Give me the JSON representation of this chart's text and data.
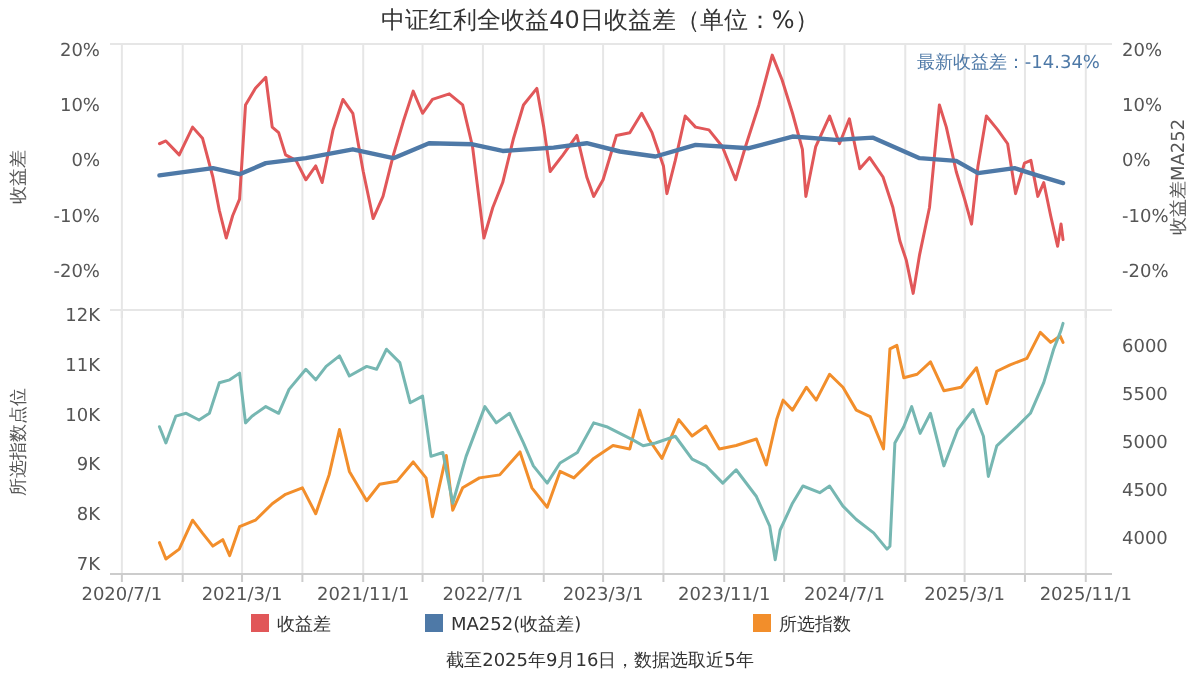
{
  "chart_data": [
    {
      "type": "line",
      "title": "中证红利全收益40日收益差（单位：%）",
      "ylabel": "收益差",
      "y2label": "收益差MA252",
      "annotations": [
        "最新收益差：-14.34%"
      ],
      "xlim": [
        "2020-06-07",
        "2025-12-24"
      ],
      "xticks": [
        {
          "value": "2020-07-01",
          "label": null
        },
        {
          "value": "2020-11-01",
          "label": null
        },
        {
          "value": "2021-03-01",
          "label": null
        },
        {
          "value": "2021-07-01",
          "label": null
        },
        {
          "value": "2021-11-01",
          "label": null
        },
        {
          "value": "2022-03-01",
          "label": null
        },
        {
          "value": "2022-07-01",
          "label": null
        },
        {
          "value": "2022-11-01",
          "label": null
        },
        {
          "value": "2023-03-01",
          "label": null
        },
        {
          "value": "2023-07-01",
          "label": null
        },
        {
          "value": "2023-11-01",
          "label": null
        },
        {
          "value": "2024-03-01",
          "label": null
        },
        {
          "value": "2024-07-01",
          "label": null
        },
        {
          "value": "2024-11-01",
          "label": null
        },
        {
          "value": "2025-03-01",
          "label": null
        },
        {
          "value": "2025-07-01",
          "label": null
        },
        {
          "value": "2025-11-01",
          "label": null
        }
      ],
      "ylim": [
        -27,
        21
      ],
      "yticks": [
        {
          "value": -20,
          "label": "-20%"
        },
        {
          "value": -10,
          "label": "-10%"
        },
        {
          "value": 0,
          "label": "0%"
        },
        {
          "value": 10,
          "label": "10%"
        },
        {
          "value": 20,
          "label": "20%"
        }
      ],
      "y2lim": [
        -27,
        21
      ],
      "y2ticks": [
        {
          "value": -20,
          "label": "-20%"
        },
        {
          "value": -10,
          "label": "-10%"
        },
        {
          "value": 0,
          "label": "0%"
        },
        {
          "value": 10,
          "label": "10%"
        },
        {
          "value": 20,
          "label": "20%"
        }
      ],
      "grid": "x",
      "legend": "bottom",
      "tick_labels": "y",
      "series": [
        {
          "name": "收益差",
          "color": "#e15759",
          "x": [
            "2020-09-15",
            "2020-09-28",
            "2020-10-25",
            "2020-11-21",
            "2020-12-11",
            "2021-01-01",
            "2021-01-14",
            "2021-01-28",
            "2021-02-10",
            "2021-02-24",
            "2021-03-08",
            "2021-03-28",
            "2021-04-18",
            "2021-05-01",
            "2021-05-14",
            "2021-05-28",
            "2021-06-18",
            "2021-07-08",
            "2021-07-28",
            "2021-08-10",
            "2021-09-01",
            "2021-09-21",
            "2021-10-11",
            "2021-11-01",
            "2021-11-21",
            "2021-12-11",
            "2022-01-01",
            "2022-01-21",
            "2022-02-10",
            "2022-03-01",
            "2022-03-21",
            "2022-04-24",
            "2022-05-21",
            "2022-06-10",
            "2022-06-24",
            "2022-07-03",
            "2022-07-21",
            "2022-08-10",
            "2022-09-01",
            "2022-09-21",
            "2022-10-18",
            "2022-11-01",
            "2022-11-14",
            "2022-12-10",
            "2023-01-07",
            "2023-01-27",
            "2023-02-10",
            "2023-03-01",
            "2023-03-28",
            "2023-04-24",
            "2023-05-18",
            "2023-06-08",
            "2023-07-01",
            "2023-07-08",
            "2023-07-25",
            "2023-08-14",
            "2023-09-04",
            "2023-10-01",
            "2023-10-28",
            "2023-11-24",
            "2023-12-14",
            "2024-01-10",
            "2024-02-06",
            "2024-02-26",
            "2024-03-18",
            "2024-04-07",
            "2024-04-14",
            "2024-05-04",
            "2024-06-01",
            "2024-06-21",
            "2024-07-11",
            "2024-08-01",
            "2024-08-21",
            "2024-09-17",
            "2024-10-07",
            "2024-10-21",
            "2024-11-03",
            "2024-11-17",
            "2024-11-30",
            "2024-12-20",
            "2025-01-09",
            "2025-01-23",
            "2025-02-12",
            "2025-03-01",
            "2025-03-15",
            "2025-03-28",
            "2025-04-14",
            "2025-05-07",
            "2025-05-27",
            "2025-06-12",
            "2025-06-30",
            "2025-07-13",
            "2025-07-27",
            "2025-08-08",
            "2025-08-22",
            "2025-09-05",
            "2025-09-12",
            "2025-09-16"
          ],
          "values": [
            3,
            3.5,
            1,
            6,
            4,
            -3,
            -9,
            -14,
            -10,
            -7,
            10,
            13,
            15,
            6,
            5,
            1,
            0,
            -3.5,
            -1,
            -4,
            5.5,
            11,
            8.5,
            -2,
            -10.5,
            -6.5,
            1,
            7,
            12.5,
            8.5,
            11,
            12,
            10,
            2.5,
            -7.5,
            -14,
            -8.5,
            -4,
            4,
            10,
            13,
            6,
            -2,
            1,
            4.5,
            -3,
            -6.5,
            -3.5,
            4.5,
            5,
            8.5,
            5,
            -1,
            -6,
            0,
            8,
            6,
            5.5,
            2.5,
            -3.5,
            2.5,
            10,
            19,
            14.5,
            8.5,
            2,
            -6.5,
            2.5,
            8,
            3,
            7.5,
            -1.5,
            0.5,
            -3,
            -8.5,
            -14.5,
            -18,
            -24,
            -17,
            -8.5,
            10,
            6,
            -2,
            -7,
            -11.5,
            -1,
            8,
            5.5,
            3,
            -6,
            -0.5,
            0,
            -6.5,
            -4,
            -10,
            -15.5,
            -11.5,
            -14.3
          ]
        },
        {
          "name": "MA252(收益差)",
          "color": "#4e79a7",
          "axis": "y2",
          "x": [
            "2020-09-15",
            "2021-01-01",
            "2021-02-24",
            "2021-04-18",
            "2021-07-08",
            "2021-10-11",
            "2022-01-01",
            "2022-03-14",
            "2022-06-10",
            "2022-08-10",
            "2022-11-21",
            "2023-01-27",
            "2023-04-04",
            "2023-06-15",
            "2023-09-04",
            "2023-12-21",
            "2024-03-18",
            "2024-06-14",
            "2024-08-28",
            "2024-11-30",
            "2025-02-12",
            "2025-03-28",
            "2025-06-10",
            "2025-07-26",
            "2025-09-16"
          ],
          "values": [
            -2.7,
            -1.4,
            -2.5,
            -0.5,
            0.4,
            2,
            0.4,
            3.1,
            2.9,
            1.7,
            2.3,
            3.1,
            1.6,
            0.7,
            2.8,
            2.2,
            4.3,
            3.7,
            4.1,
            0.4,
            -0.1,
            -2.3,
            -1.4,
            -2.7,
            -4.1
          ]
        }
      ]
    },
    {
      "type": "line",
      "ylabel": "所选指数点位",
      "annotations": [
        "截至2025年9月16日，数据选取近5年"
      ],
      "xlim": [
        "2020-06-07",
        "2025-12-24"
      ],
      "xticks": [
        {
          "value": "2020-07-01",
          "label": "2020/7/1"
        },
        {
          "value": "2020-11-01",
          "label": null
        },
        {
          "value": "2021-03-01",
          "label": "2021/3/1"
        },
        {
          "value": "2021-07-01",
          "label": null
        },
        {
          "value": "2021-11-01",
          "label": "2021/11/1"
        },
        {
          "value": "2022-03-01",
          "label": null
        },
        {
          "value": "2022-07-01",
          "label": "2022/7/1"
        },
        {
          "value": "2022-11-01",
          "label": null
        },
        {
          "value": "2023-03-01",
          "label": "2023/3/1"
        },
        {
          "value": "2023-07-01",
          "label": null
        },
        {
          "value": "2023-11-01",
          "label": "2023/11/1"
        },
        {
          "value": "2024-03-01",
          "label": null
        },
        {
          "value": "2024-07-01",
          "label": "2024/7/1"
        },
        {
          "value": "2024-11-01",
          "label": null
        },
        {
          "value": "2025-03-01",
          "label": "2025/3/1"
        },
        {
          "value": "2025-07-01",
          "label": null
        },
        {
          "value": "2025-11-01",
          "label": "2025/11/1"
        }
      ],
      "ylim": [
        6800,
        12100
      ],
      "yticks": [
        {
          "value": 7000,
          "label": "7K"
        },
        {
          "value": 8000,
          "label": "8K"
        },
        {
          "value": 9000,
          "label": "9K"
        },
        {
          "value": 10000,
          "label": "10K"
        },
        {
          "value": 11000,
          "label": "11K"
        },
        {
          "value": 12000,
          "label": "12K"
        }
      ],
      "y2lim": [
        3620,
        6380
      ],
      "y2ticks": [
        4000,
        4500,
        5000,
        5500,
        6000
      ],
      "grid": "x",
      "legend": "bottom",
      "series": [
        {
          "name": "所选指数",
          "color": "#f28e2b",
          "x": [
            "2020-09-15",
            "2020-09-28",
            "2020-10-25",
            "2020-11-21",
            "2020-12-11",
            "2021-01-01",
            "2021-01-21",
            "2021-02-04",
            "2021-02-24",
            "2021-03-28",
            "2021-05-01",
            "2021-05-28",
            "2021-07-01",
            "2021-07-28",
            "2021-08-24",
            "2021-09-14",
            "2021-10-04",
            "2021-11-08",
            "2021-12-04",
            "2022-01-08",
            "2022-02-10",
            "2022-03-08",
            "2022-03-21",
            "2022-04-18",
            "2022-05-01",
            "2022-05-21",
            "2022-06-24",
            "2022-08-04",
            "2022-09-14",
            "2022-10-08",
            "2022-11-08",
            "2022-12-04",
            "2023-01-01",
            "2023-02-10",
            "2023-03-21",
            "2023-04-24",
            "2023-05-14",
            "2023-06-01",
            "2023-06-28",
            "2023-08-01",
            "2023-08-28",
            "2023-09-25",
            "2023-10-22",
            "2023-11-25",
            "2024-01-05",
            "2024-01-25",
            "2024-02-15",
            "2024-02-28",
            "2024-03-18",
            "2024-04-15",
            "2024-05-05",
            "2024-06-01",
            "2024-06-28",
            "2024-07-25",
            "2024-08-22",
            "2024-09-18",
            "2024-10-01",
            "2024-10-15",
            "2024-10-29",
            "2024-11-25",
            "2024-12-22",
            "2025-01-18",
            "2025-02-22",
            "2025-03-25",
            "2025-04-15",
            "2025-05-05",
            "2025-06-01",
            "2025-07-05",
            "2025-08-01",
            "2025-08-22",
            "2025-09-10",
            "2025-09-16"
          ],
          "values": [
            7430,
            7100,
            7300,
            7880,
            7620,
            7360,
            7490,
            7170,
            7750,
            7880,
            8210,
            8400,
            8530,
            8010,
            8790,
            9700,
            8860,
            8270,
            8600,
            8660,
            9050,
            8730,
            7950,
            9180,
            8080,
            8530,
            8730,
            8790,
            9250,
            8530,
            8140,
            8860,
            8730,
            9120,
            9380,
            9310,
            10090,
            9510,
            9120,
            9900,
            9570,
            9770,
            9310,
            9380,
            9510,
            8990,
            9900,
            10290,
            10090,
            10550,
            10290,
            10810,
            10550,
            10090,
            9960,
            9310,
            11320,
            11390,
            10740,
            10810,
            11060,
            10480,
            10550,
            10940,
            10220,
            10870,
            11000,
            11130,
            11650,
            11450,
            11580,
            11450
          ]
        },
        {
          "color": "#76b7b2",
          "axis": "y2",
          "x": [
            "2020-09-15",
            "2020-09-28",
            "2020-10-18",
            "2020-11-08",
            "2020-12-04",
            "2020-12-25",
            "2021-01-14",
            "2021-02-04",
            "2021-02-24",
            "2021-03-08",
            "2021-03-21",
            "2021-04-18",
            "2021-05-14",
            "2021-06-04",
            "2021-07-08",
            "2021-07-28",
            "2021-08-18",
            "2021-09-14",
            "2021-10-04",
            "2021-11-08",
            "2021-11-28",
            "2021-12-18",
            "2022-01-14",
            "2022-02-04",
            "2022-03-01",
            "2022-03-18",
            "2022-04-11",
            "2022-05-01",
            "2022-05-28",
            "2022-07-05",
            "2022-07-28",
            "2022-08-24",
            "2022-09-21",
            "2022-10-11",
            "2022-11-08",
            "2022-12-04",
            "2023-01-08",
            "2023-02-10",
            "2023-03-08",
            "2023-04-04",
            "2023-05-01",
            "2023-05-21",
            "2023-06-15",
            "2023-07-25",
            "2023-08-28",
            "2023-09-25",
            "2023-10-29",
            "2023-11-25",
            "2024-01-05",
            "2024-02-01",
            "2024-02-12",
            "2024-02-22",
            "2024-03-18",
            "2024-04-08",
            "2024-05-12",
            "2024-06-01",
            "2024-06-28",
            "2024-07-25",
            "2024-08-29",
            "2024-09-25",
            "2024-10-01",
            "2024-10-11",
            "2024-10-29",
            "2024-11-14",
            "2024-12-01",
            "2024-12-22",
            "2025-01-18",
            "2025-02-15",
            "2025-03-18",
            "2025-04-08",
            "2025-04-18",
            "2025-05-05",
            "2025-06-15",
            "2025-07-12",
            "2025-08-08",
            "2025-08-28",
            "2025-09-12",
            "2025-09-16"
          ],
          "values": [
            5160,
            4990,
            5270,
            5300,
            5230,
            5300,
            5620,
            5650,
            5720,
            5200,
            5270,
            5370,
            5300,
            5550,
            5760,
            5650,
            5790,
            5900,
            5690,
            5790,
            5760,
            5970,
            5830,
            5410,
            5480,
            4850,
            4890,
            4360,
            4850,
            5370,
            5200,
            5300,
            4990,
            4750,
            4570,
            4780,
            4890,
            5200,
            5160,
            5090,
            5020,
            4960,
            4990,
            5060,
            4820,
            4750,
            4570,
            4710,
            4430,
            4120,
            3770,
            4080,
            4360,
            4540,
            4470,
            4540,
            4330,
            4190,
            4050,
            3880,
            3910,
            4990,
            5160,
            5370,
            5090,
            5300,
            4750,
            5130,
            5340,
            5060,
            4640,
            4960,
            5160,
            5300,
            5620,
            5970,
            6170,
            6240
          ]
        }
      ]
    }
  ]
}
